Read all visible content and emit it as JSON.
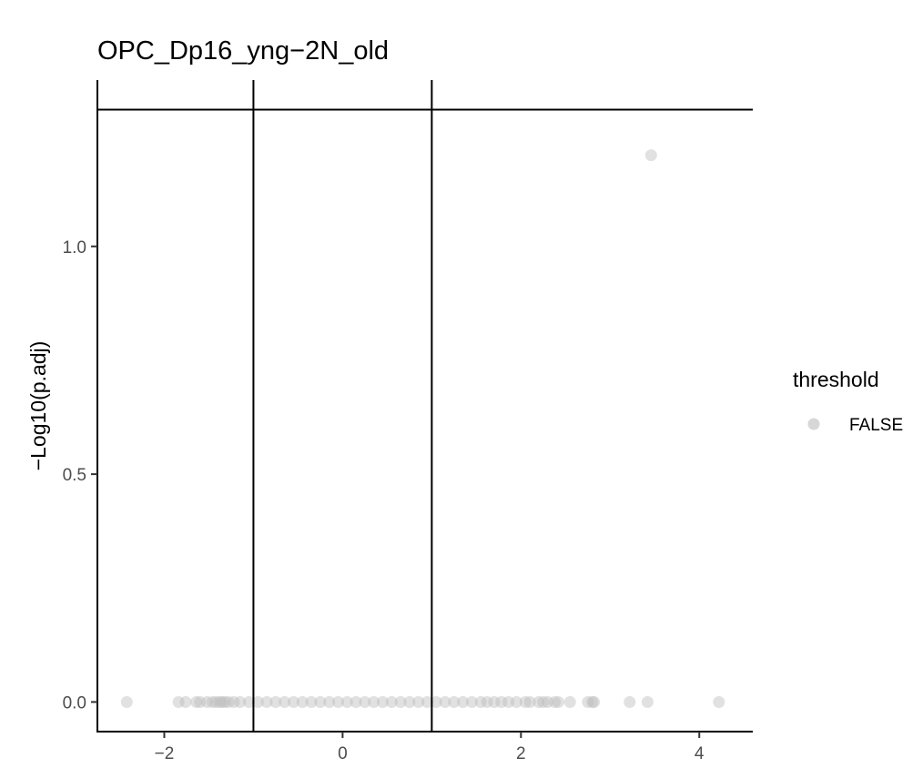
{
  "chart_data": {
    "type": "scatter",
    "title": "OPC_Dp16_yng−2N_old",
    "xlabel": "",
    "ylabel": "−Log10(p.adj)",
    "xlim": [
      -2.75,
      4.6
    ],
    "ylim": [
      -0.065,
      1.365
    ],
    "x_ticks": [
      -2,
      0,
      2,
      4
    ],
    "x_tick_labels": [
      "−2",
      "0",
      "2",
      "4"
    ],
    "y_ticks": [
      0.0,
      0.5,
      1.0
    ],
    "y_tick_labels": [
      "0.0",
      "0.5",
      "1.0"
    ],
    "reference_lines": {
      "vertical_x": [
        -1,
        1
      ],
      "horizontal_y": [
        1.3
      ]
    },
    "grid": false,
    "legend": {
      "title": "threshold",
      "placement": "right",
      "entries": [
        {
          "label": "FALSE",
          "color": "#bdbdbd"
        }
      ]
    },
    "point_color": "#bdbdbd",
    "point_opacity": 0.45,
    "series": [
      {
        "x": [
          3.46,
          -2.42,
          -1.84,
          -1.76,
          -1.64,
          -1.6,
          -1.52,
          -1.46,
          -1.42,
          -1.38,
          -1.35,
          -1.32,
          -1.28,
          -1.22,
          -1.15,
          -1.05,
          -0.95,
          -0.85,
          -0.75,
          -0.65,
          -0.55,
          -0.45,
          -0.35,
          -0.25,
          -0.15,
          -0.05,
          0.05,
          0.15,
          0.25,
          0.35,
          0.45,
          0.55,
          0.65,
          0.75,
          0.85,
          0.95,
          1.05,
          1.15,
          1.25,
          1.35,
          1.45,
          1.55,
          1.62,
          1.7,
          1.78,
          1.86,
          1.95,
          2.05,
          2.1,
          2.2,
          2.25,
          2.3,
          2.38,
          2.42,
          2.55,
          2.75,
          2.8,
          2.82,
          3.22,
          3.42,
          4.22
        ],
        "y": [
          1.2,
          0,
          0,
          0,
          0,
          0,
          0,
          0,
          0,
          0,
          0,
          0,
          0,
          0,
          0,
          0,
          0,
          0,
          0,
          0,
          0,
          0,
          0,
          0,
          0,
          0,
          0,
          0,
          0,
          0,
          0,
          0,
          0,
          0,
          0,
          0,
          0,
          0,
          0,
          0,
          0,
          0,
          0,
          0,
          0,
          0,
          0,
          0,
          0,
          0,
          0,
          0,
          0,
          0,
          0,
          0,
          0,
          0,
          0,
          0,
          0
        ]
      }
    ]
  }
}
